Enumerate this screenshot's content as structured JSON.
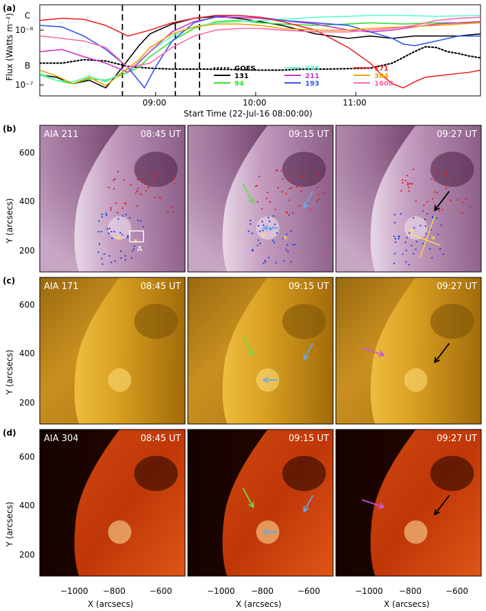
{
  "panel_a": {
    "label": "(a)",
    "ylabel": "Flux (Watts m⁻²)",
    "xlabel": "Start Time (22-Jul-16 08:00:00)",
    "xticks": [
      "09:00",
      "10:00",
      "11:00"
    ],
    "yticks": [
      "10⁻⁶",
      "10⁻⁷"
    ],
    "goes_classes": [
      "C",
      "B"
    ],
    "legend": [
      {
        "name": "GOES",
        "color": "#000000",
        "dash": "dot"
      },
      {
        "name": "131",
        "color": "#000000",
        "dash": "solid"
      },
      {
        "name": "94",
        "color": "#33dd33",
        "dash": "solid"
      },
      {
        "name": "335",
        "color": "#55ffcc",
        "dash": "solid"
      },
      {
        "name": "211",
        "color": "#cc33cc",
        "dash": "solid"
      },
      {
        "name": "193",
        "color": "#3355ee",
        "dash": "solid"
      },
      {
        "name": "171",
        "color": "#ee2222",
        "dash": "solid"
      },
      {
        "name": "304",
        "color": "#f0a000",
        "dash": "solid"
      },
      {
        "name": "1600",
        "color": "#ff66aa",
        "dash": "solid"
      }
    ]
  },
  "chart_data": {
    "type": "line",
    "ylabel": "Flux (Watts m⁻²)",
    "xlabel": "Start Time (22-Jul-16 08:00:00)",
    "x_unit": "hours after 08:00",
    "xlim": [
      0,
      4.0
    ],
    "yscale": "log",
    "ylim": [
      7e-08,
      4e-06
    ],
    "vlines": [
      0.75,
      1.23,
      1.45
    ],
    "series": [
      {
        "name": "GOES",
        "x": [
          0,
          0.2,
          0.4,
          0.6,
          0.8,
          1.0,
          1.2,
          1.5,
          1.8,
          2.0,
          2.2,
          2.4,
          2.6,
          2.8,
          3.0,
          3.2,
          3.4,
          3.5,
          3.6,
          3.7,
          3.8,
          3.9,
          4.0
        ],
        "y": [
          3e-07,
          3e-07,
          3.5e-07,
          3.3e-07,
          2.6e-07,
          2.4e-07,
          2.3e-07,
          2.3e-07,
          2.25e-07,
          2.2e-07,
          2.2e-07,
          2.3e-07,
          2.3e-07,
          2.35e-07,
          2.4e-07,
          3e-07,
          5e-07,
          6.2e-07,
          6e-07,
          5e-07,
          4.6e-07,
          4.1e-07,
          3.8e-07
        ]
      },
      {
        "name": "131",
        "x": [
          0,
          0.15,
          0.3,
          0.45,
          0.6,
          0.75,
          0.9,
          1.0,
          1.2,
          1.4,
          1.6,
          1.8,
          2.0,
          2.2,
          2.5,
          2.8,
          3.0,
          3.2,
          3.4,
          3.6,
          3.8,
          4.0
        ],
        "y": [
          1.8e-07,
          1.6e-07,
          1.2e-07,
          1.4e-07,
          1e-07,
          2.5e-07,
          6.5e-07,
          1.1e-06,
          1.7e-06,
          2.2e-06,
          2.4e-06,
          2.2e-06,
          1.9e-06,
          1.6e-06,
          1.1e-06,
          9e-07,
          1e-06,
          9e-07,
          1e-06,
          1e-06,
          1e-06,
          1.1e-06
        ]
      },
      {
        "name": "94",
        "x": [
          0,
          0.15,
          0.3,
          0.45,
          0.6,
          0.75,
          0.9,
          1.0,
          1.2,
          1.4,
          1.6,
          1.8,
          2.0,
          2.2,
          2.5,
          2.8,
          3.0,
          3.3,
          3.6,
          4.0
        ],
        "y": [
          1.8e-07,
          1.4e-07,
          1.2e-07,
          1.5e-07,
          1.4e-07,
          1.8e-07,
          2.5e-07,
          4e-07,
          8e-07,
          1.4e-06,
          1.9e-06,
          2e-06,
          1.8e-06,
          1.7e-06,
          1.6e-06,
          1.7e-06,
          1.8e-06,
          1.7e-06,
          1.8e-06,
          1.8e-06
        ]
      },
      {
        "name": "335",
        "x": [
          0,
          0.15,
          0.3,
          0.45,
          0.6,
          0.75,
          0.9,
          1.0,
          1.2,
          1.4,
          1.6,
          1.8,
          2.0,
          2.2,
          2.5,
          2.8,
          3.0,
          3.3,
          3.6,
          4.0
        ],
        "y": [
          1.9e-07,
          1.4e-07,
          1.3e-07,
          1.7e-07,
          1.3e-07,
          2e-07,
          3e-07,
          5e-07,
          1e-06,
          1.5e-06,
          1.8e-06,
          1.9e-06,
          2e-06,
          2.1e-06,
          2.3e-06,
          2.4e-06,
          2.5e-06,
          2.5e-06,
          2.4e-06,
          2.5e-06
        ]
      },
      {
        "name": "211",
        "x": [
          0,
          0.2,
          0.4,
          0.6,
          0.8,
          1.0,
          1.2,
          1.4,
          1.6,
          1.8,
          2.0,
          2.2,
          2.5,
          2.8,
          3.0,
          3.2,
          3.4,
          3.6,
          3.8,
          4.0
        ],
        "y": [
          5e-07,
          5.5e-07,
          4e-07,
          3e-07,
          2e-07,
          5e-07,
          1.2e-06,
          1.9e-06,
          2.3e-06,
          2.3e-06,
          2.2e-06,
          2e-06,
          1.7e-06,
          1.3e-06,
          1.2e-06,
          1.3e-06,
          1.5e-06,
          1.7e-06,
          1.8e-06,
          1.9e-06
        ]
      },
      {
        "name": "193",
        "x": [
          0,
          0.2,
          0.4,
          0.6,
          0.8,
          0.95,
          1.05,
          1.2,
          1.4,
          1.6,
          1.8,
          2.0,
          2.2,
          2.5,
          2.8,
          3.0,
          3.2,
          3.3,
          3.4,
          3.6,
          3.8,
          4.0
        ],
        "y": [
          1.6e-06,
          1.5e-06,
          1e-06,
          5.5e-07,
          2.5e-07,
          1e-07,
          2.5e-07,
          8e-07,
          1.8e-06,
          2.4e-06,
          2.5e-06,
          2.3e-06,
          2e-06,
          1.8e-06,
          1.6e-06,
          1.2e-06,
          9e-07,
          7e-07,
          6.5e-07,
          8e-07,
          1e-06,
          1e-06
        ]
      },
      {
        "name": "171",
        "x": [
          0,
          0.2,
          0.4,
          0.6,
          0.8,
          1.0,
          1.2,
          1.4,
          1.6,
          1.8,
          2.0,
          2.2,
          2.5,
          2.8,
          3.0,
          3.1,
          3.2,
          3.3,
          3.4,
          3.5,
          3.7,
          3.9,
          4.0
        ],
        "y": [
          2e-06,
          2.2e-06,
          2.1e-06,
          1.6e-06,
          1e-06,
          1.3e-06,
          1.8e-06,
          2.2e-06,
          2.5e-06,
          2.5e-06,
          2.3e-06,
          1.9e-06,
          1.3e-06,
          6e-07,
          3e-07,
          1.8e-07,
          1.2e-07,
          1e-07,
          1.3e-07,
          1.6e-07,
          1.8e-07,
          2e-07,
          2.2e-07
        ]
      },
      {
        "name": "304",
        "x": [
          0,
          0.15,
          0.3,
          0.45,
          0.6,
          0.75,
          0.9,
          1.0,
          1.2,
          1.4,
          1.6,
          1.8,
          2.0,
          2.2,
          2.5,
          2.8,
          3.0,
          3.3,
          3.6,
          4.0
        ],
        "y": [
          2.2e-07,
          1.7e-07,
          1.2e-07,
          1.6e-07,
          1.1e-07,
          2e-07,
          3.5e-07,
          6e-07,
          1.1e-06,
          1.5e-06,
          1.7e-06,
          1.7e-06,
          1.6e-06,
          1.4e-06,
          1.3e-06,
          1.3e-06,
          1.4e-06,
          1.5e-06,
          1.6e-06,
          1.8e-06
        ]
      },
      {
        "name": "1600",
        "x": [
          0,
          0.2,
          0.4,
          0.6,
          0.8,
          1.0,
          1.2,
          1.4,
          1.6,
          1.8,
          2.0,
          2.2,
          2.5,
          2.8,
          3.0,
          3.2,
          3.4,
          3.6,
          3.8,
          4.0
        ],
        "y": [
          1e-06,
          9e-07,
          8e-07,
          6e-07,
          2.5e-07,
          3e-07,
          6e-07,
          1e-06,
          1.3e-06,
          1.4e-06,
          1.4e-06,
          1.3e-06,
          1.2e-06,
          1.2e-06,
          1.3e-06,
          1.4e-06,
          1.6e-06,
          2e-06,
          2.2e-06,
          2.3e-06
        ]
      }
    ]
  },
  "rows": [
    {
      "label": "(b)",
      "channel": "AIA 211",
      "times": [
        "08:45 UT",
        "09:15 UT",
        "09:27 UT"
      ],
      "theme": "211"
    },
    {
      "label": "(c)",
      "channel": "AIA 171",
      "times": [
        "08:45 UT",
        "09:15 UT",
        "09:27 UT"
      ],
      "theme": "171"
    },
    {
      "label": "(d)",
      "channel": "AIA 304",
      "times": [
        "08:45 UT",
        "09:15 UT",
        "09:27 UT"
      ],
      "theme": "304"
    }
  ],
  "image_axes": {
    "ylabel": "Y (arcsecs)",
    "xlabel": "X (arcsecs)",
    "yticks": [
      "600",
      "400",
      "200"
    ],
    "xticks": [
      "−1000",
      "−800",
      "−600"
    ]
  },
  "box_label": "A"
}
